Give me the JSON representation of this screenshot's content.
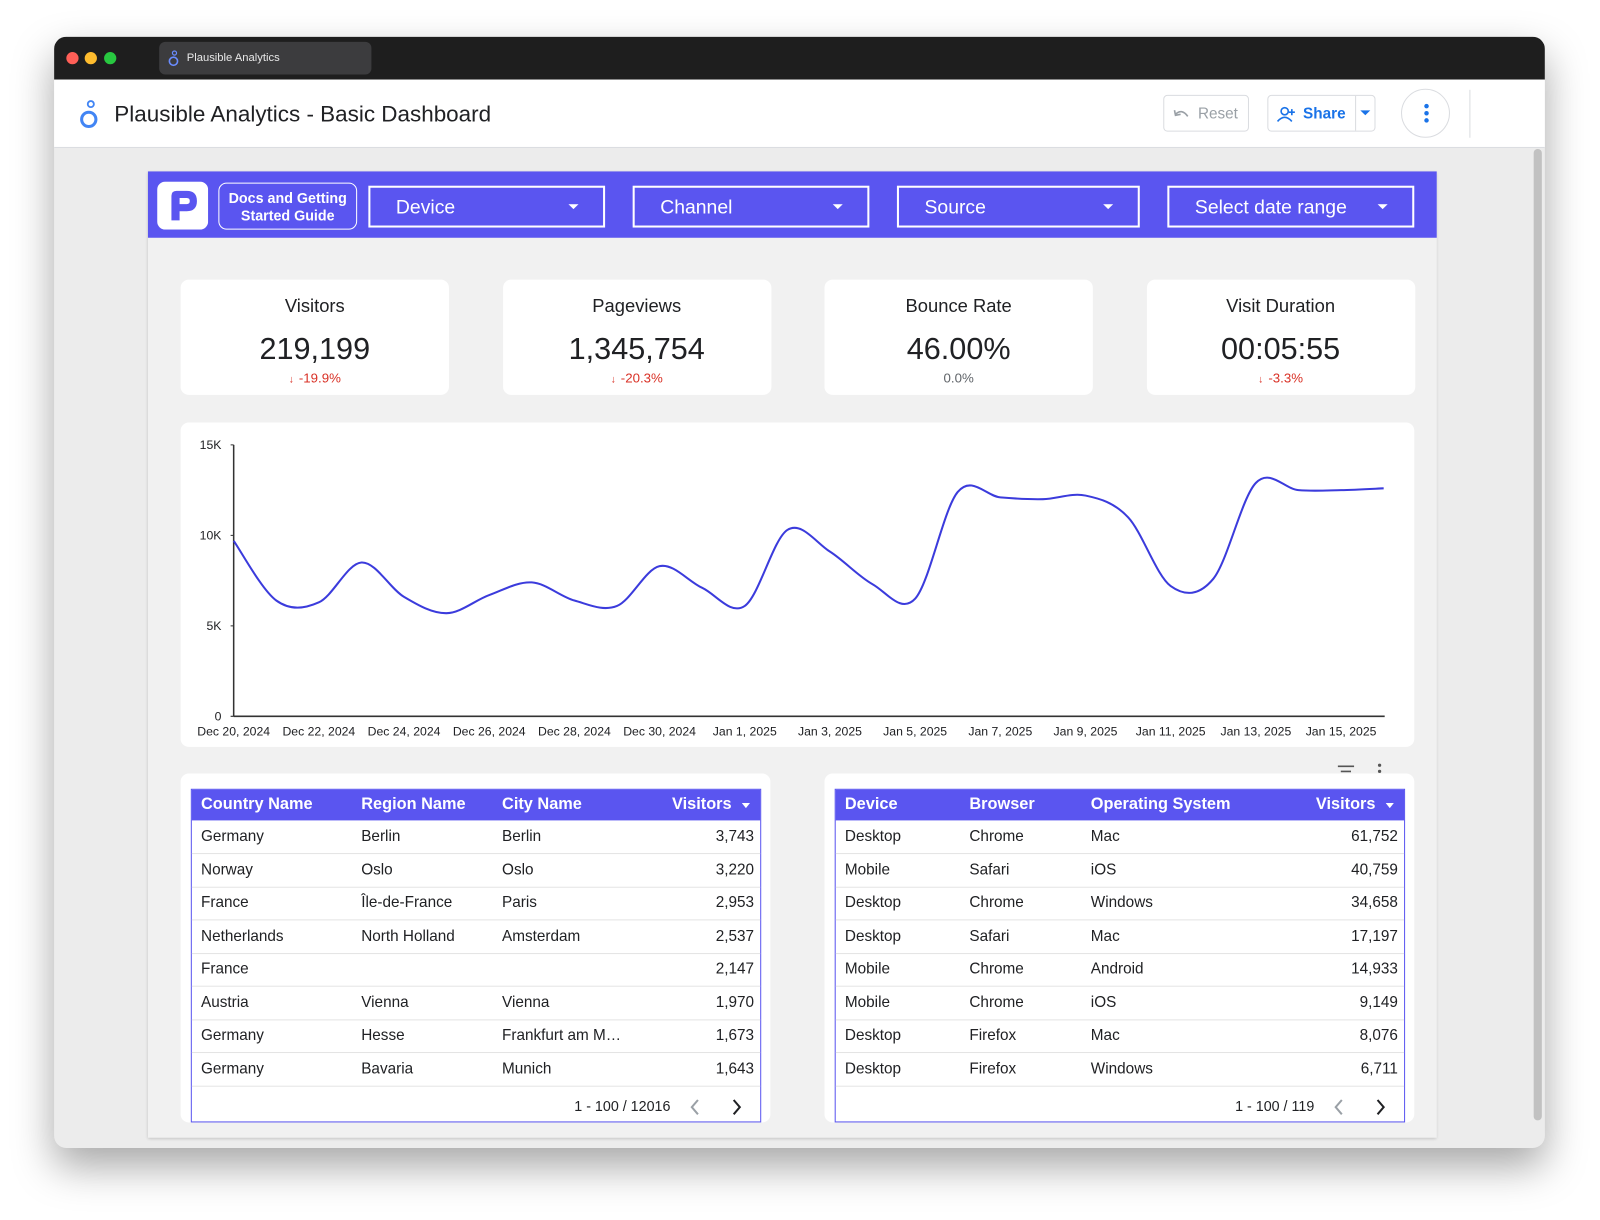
{
  "window": {
    "tab_title": "Plausible Analytics"
  },
  "header": {
    "title": "Plausible Analytics - Basic Dashboard",
    "reset": "Reset",
    "share": "Share"
  },
  "toolbar": {
    "docs_link": "Docs and Getting Started Guide",
    "filters": [
      "Device",
      "Channel",
      "Source",
      "Select date range"
    ]
  },
  "kpis": [
    {
      "label": "Visitors",
      "value": "219,199",
      "change": "-19.9%",
      "trend": "down"
    },
    {
      "label": "Pageviews",
      "value": "1,345,754",
      "change": "-20.3%",
      "trend": "down"
    },
    {
      "label": "Bounce Rate",
      "value": "46.00%",
      "change": "0.0%",
      "trend": "flat"
    },
    {
      "label": "Visit Duration",
      "value": "00:05:55",
      "change": "-3.3%",
      "trend": "down"
    }
  ],
  "chart_data": {
    "type": "line",
    "categories": [
      "Dec 20, 2024",
      null,
      "Dec 22, 2024",
      null,
      "Dec 24, 2024",
      null,
      "Dec 26, 2024",
      null,
      "Dec 28, 2024",
      null,
      "Dec 30, 2024",
      null,
      "Jan 1, 2025",
      null,
      "Jan 3, 2025",
      null,
      "Jan 5, 2025",
      null,
      "Jan 7, 2025",
      null,
      "Jan 9, 2025",
      null,
      "Jan 11, 2025",
      null,
      "Jan 13, 2025",
      null,
      "Jan 15, 2025",
      null
    ],
    "values": [
      9700,
      6400,
      6300,
      8500,
      6600,
      5700,
      6700,
      7400,
      6400,
      6100,
      8300,
      7100,
      6100,
      10300,
      9100,
      7300,
      6500,
      12400,
      12100,
      12000,
      12200,
      11000,
      7200,
      7600,
      12900,
      12500,
      12500,
      12600
    ],
    "color": "#3b3bdc",
    "ylim": [
      0,
      15000
    ],
    "yticks": [
      0,
      {
        "value": 5000,
        "label": "5K"
      },
      {
        "value": 10000,
        "label": "10K"
      },
      {
        "value": 15000,
        "label": "15K"
      }
    ],
    "grid": false
  },
  "tables": [
    {
      "columns": [
        "Country Name",
        "Region Name",
        "City Name",
        "Visitors"
      ],
      "rows": [
        [
          "Germany",
          "Berlin",
          "Berlin",
          "3,743"
        ],
        [
          "Norway",
          "Oslo",
          "Oslo",
          "3,220"
        ],
        [
          "France",
          "Île-de-France",
          "Paris",
          "2,953"
        ],
        [
          "Netherlands",
          "North Holland",
          "Amsterdam",
          "2,537"
        ],
        [
          "France",
          null,
          null,
          "2,147"
        ],
        [
          "Austria",
          "Vienna",
          "Vienna",
          "1,970"
        ],
        [
          "Germany",
          "Hesse",
          "Frankfurt am M…",
          "1,673"
        ],
        [
          "Germany",
          "Bavaria",
          "Munich",
          "1,643"
        ]
      ],
      "pagination": "1 - 100 / 12016"
    },
    {
      "columns": [
        "Device",
        "Browser",
        "Operating System",
        "Visitors"
      ],
      "rows": [
        [
          "Desktop",
          "Chrome",
          "Mac",
          "61,752"
        ],
        [
          "Mobile",
          "Safari",
          "iOS",
          "40,759"
        ],
        [
          "Desktop",
          "Chrome",
          "Windows",
          "34,658"
        ],
        [
          "Desktop",
          "Safari",
          "Mac",
          "17,197"
        ],
        [
          "Mobile",
          "Chrome",
          "Android",
          "14,933"
        ],
        [
          "Mobile",
          "Chrome",
          "iOS",
          "9,149"
        ],
        [
          "Desktop",
          "Firefox",
          "Mac",
          "8,076"
        ],
        [
          "Desktop",
          "Firefox",
          "Windows",
          "6,711"
        ]
      ],
      "pagination": "1 - 100 / 119"
    }
  ]
}
